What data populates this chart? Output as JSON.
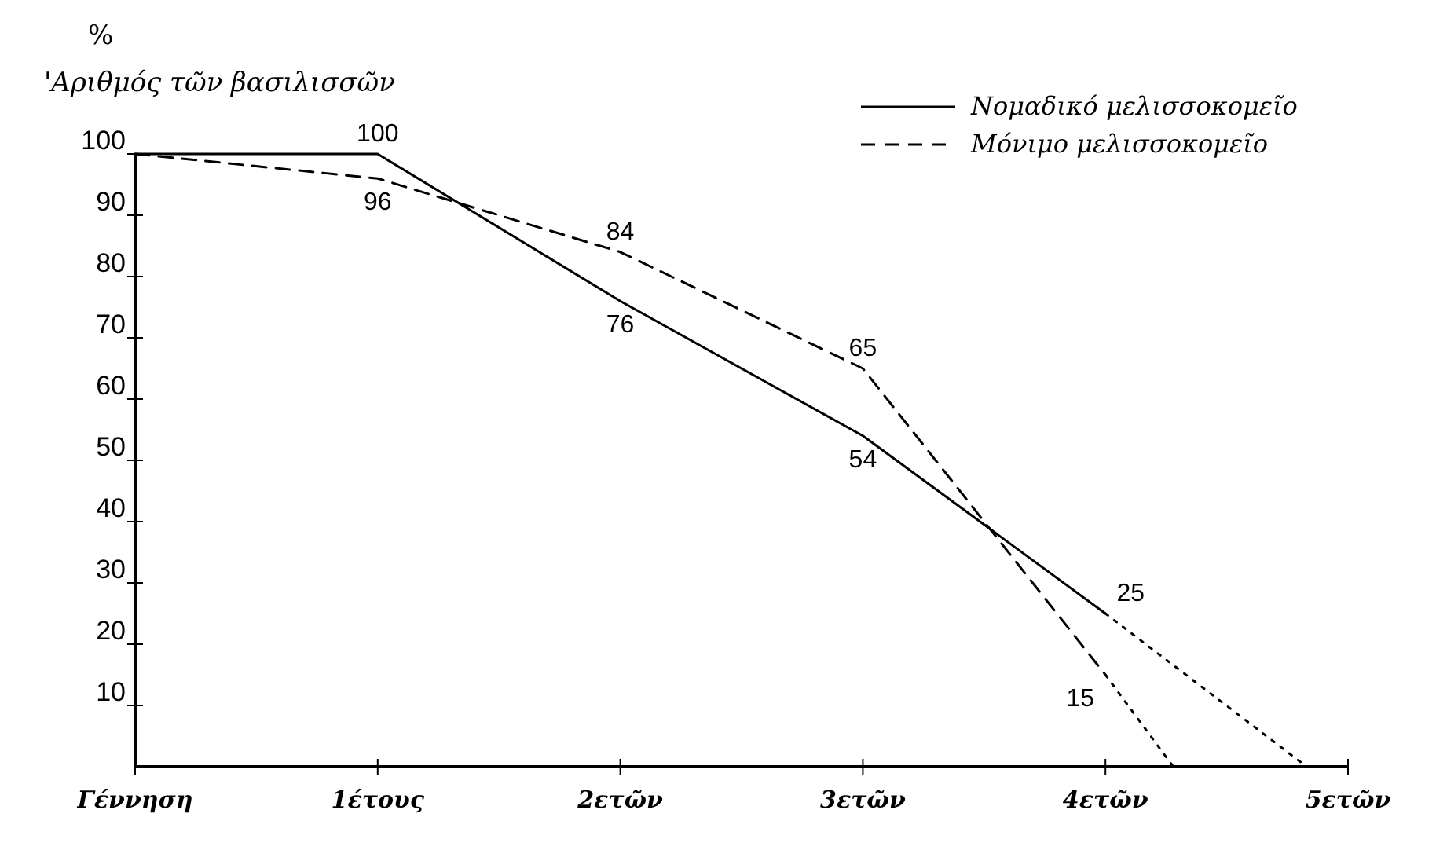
{
  "chart_data": {
    "type": "line",
    "ylabel": "'Αριθμός τῶν βασιλισσῶν",
    "annotations": [
      "%"
    ],
    "xlim": [
      0,
      5
    ],
    "xticks": [
      {
        "value": 0,
        "label": "Γέννηση"
      },
      {
        "value": 1,
        "label": "1έτους"
      },
      {
        "value": 2,
        "label": "2ετῶν"
      },
      {
        "value": 3,
        "label": "3ετῶν"
      },
      {
        "value": 4,
        "label": "4ετῶν"
      },
      {
        "value": 5,
        "label": "5ετῶν"
      }
    ],
    "ylim": [
      0,
      100
    ],
    "yticks": [
      10,
      20,
      30,
      40,
      50,
      60,
      70,
      80,
      90,
      100
    ],
    "grid": false,
    "legend": "top right",
    "marker": "none",
    "series": [
      {
        "name": "Νομαδικό μελισσοκομεῖο",
        "color": "#000000",
        "line_style": [
          "solid",
          "solid",
          "solid",
          "solid",
          "dotted"
        ],
        "x": [
          0,
          1,
          2,
          3,
          4,
          4.83
        ],
        "values": [
          100,
          100,
          76,
          54,
          25,
          0
        ],
        "value_labels": [
          null,
          "100",
          "76",
          "54",
          "25",
          null
        ]
      },
      {
        "name": "Μόνιμο μελισσοκομεῖο",
        "color": "#000000",
        "line_style": [
          "dashed",
          "dashed",
          "dashed",
          "dashed",
          "dotted"
        ],
        "x": [
          0,
          1,
          2,
          3,
          4,
          4.28
        ],
        "values": [
          100,
          96,
          84,
          65,
          15,
          0
        ],
        "value_labels": [
          null,
          "96",
          "84",
          "65",
          "15",
          null
        ]
      }
    ]
  }
}
